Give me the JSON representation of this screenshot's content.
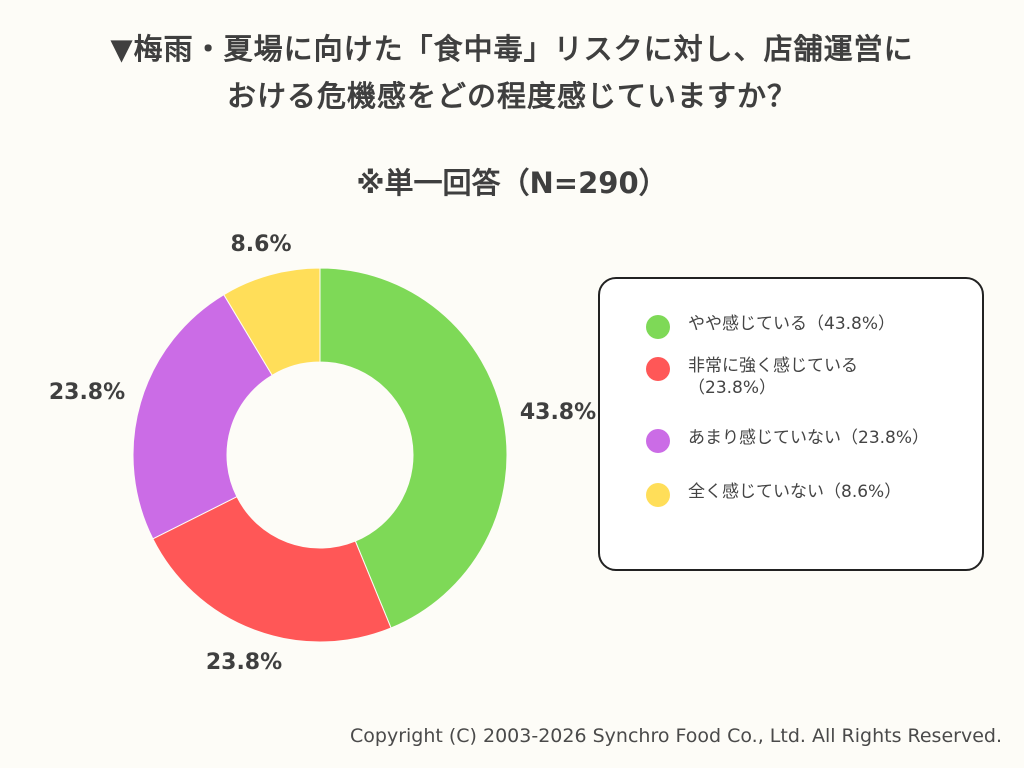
{
  "title": {
    "line1": "▼梅雨・夏場に向けた「食中毒」リスクに対し、店舗運営に",
    "line2": "おける危機感をどの程度感じていますか？"
  },
  "subtitle": "※単一回答（N=290）",
  "legend": [
    {
      "label": "やや感じている（43.8%）",
      "color": "#7ed957"
    },
    {
      "label": "非常に強く感じている（23.8%）",
      "color": "#ff5757"
    },
    {
      "label": "あまり感じていない（23.8%）",
      "color": "#cb6ce6"
    },
    {
      "label": "全く感じていない（8.6%）",
      "color": "#ffde59"
    }
  ],
  "chart_data": {
    "type": "pie",
    "donut": true,
    "title": "▼梅雨・夏場に向けた「食中毒」リスクに対し、店舗運営における危機感をどの程度感じていますか？",
    "subtitle": "※単一回答（N=290）",
    "categories": [
      "やや感じている",
      "非常に強く感じている",
      "あまり感じていない",
      "全く感じていない"
    ],
    "values": [
      43.8,
      23.8,
      23.8,
      8.6
    ],
    "data_labels": [
      "43.8%",
      "23.8%",
      "23.8%",
      "8.6%"
    ],
    "colors": [
      "#7ed957",
      "#ff5757",
      "#cb6ce6",
      "#ffde59"
    ],
    "legend_position": "right"
  },
  "copyright": "Copyright (C) 2003-2026  Synchro Food Co., Ltd. All Rights Reserved."
}
